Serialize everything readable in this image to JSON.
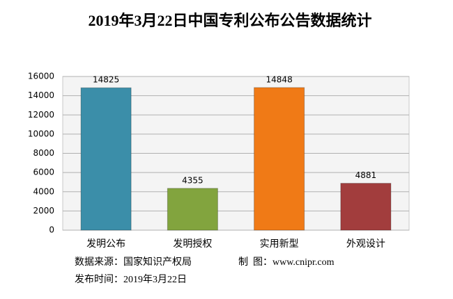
{
  "chart_data": {
    "type": "bar",
    "title": "2019年3月22日中国专利公布公告数据统计",
    "categories": [
      "发明公布",
      "发明授权",
      "实用新型",
      "外观设计"
    ],
    "values": [
      14825,
      4355,
      14848,
      4881
    ],
    "colors": [
      "#3b8ea9",
      "#82a43e",
      "#f07a16",
      "#a23d3d"
    ],
    "ylim": [
      0,
      16000
    ],
    "yticks": [
      0,
      2000,
      4000,
      6000,
      8000,
      10000,
      12000,
      14000,
      16000
    ],
    "grid": true
  },
  "footer": {
    "source": "数据来源：国家知识产权局",
    "credit": "制  图：www.cnipr.com",
    "date": "发布时间：2019年3月22日"
  }
}
